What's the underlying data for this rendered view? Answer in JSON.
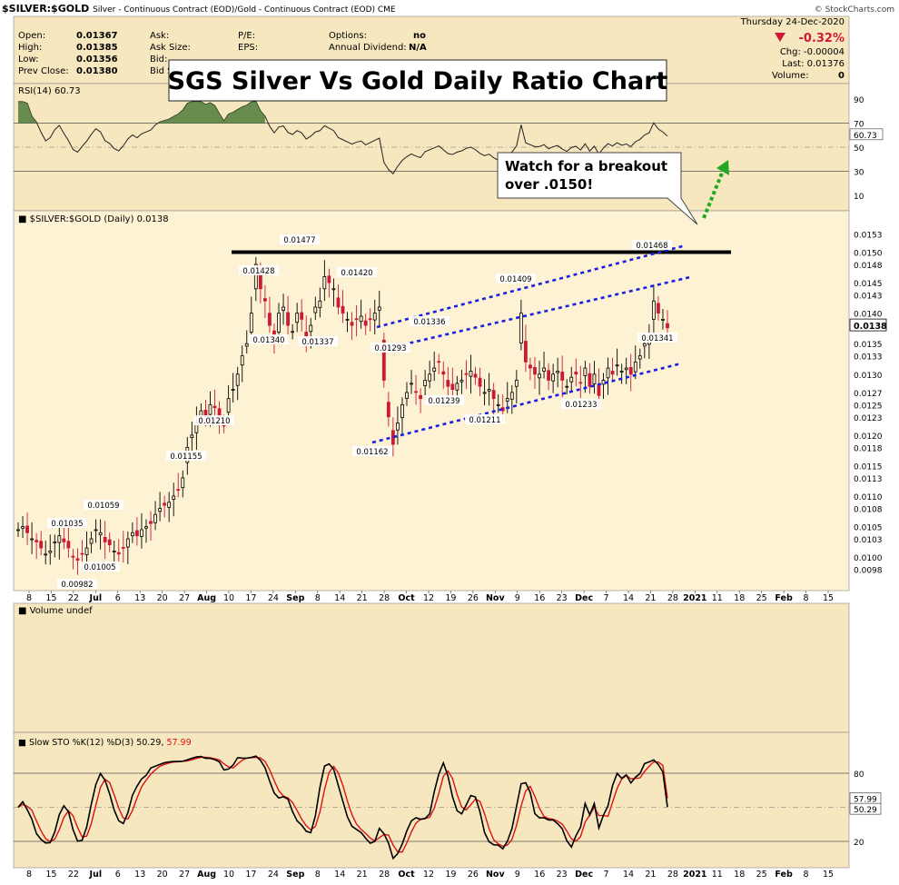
{
  "header": {
    "symbol": "$SILVER:$GOLD",
    "description": "Silver - Continuous Contract (EOD)/Gold - Continuous Contract (EOD)",
    "exchange": "CME",
    "watermark": "© StockCharts.com",
    "date": "Thursday  24-Dec-2020",
    "change_pct": "-0.32%",
    "chg": "Chg: -0.00004",
    "last": "Last: 0.01376",
    "volume": "Volume:",
    "volume_value": "0",
    "quote_labels": [
      {
        "label": "Open:",
        "value": "0.01367"
      },
      {
        "label": "High:",
        "value": "0.01385"
      },
      {
        "label": "Low:",
        "value": "0.01356"
      },
      {
        "label": "Prev Close:",
        "value": "0.01380"
      }
    ],
    "mid_labels": [
      "Ask:",
      "Ask Size:",
      "Bid:",
      "Bid Size:"
    ],
    "pe_labels": [
      "P/E:",
      "EPS:"
    ],
    "options_label": "Options:",
    "options_value": "no",
    "dividend_label": "Annual Dividend:",
    "dividend_value": "N/A"
  },
  "annotations": {
    "title": "SGS Silver Vs Gold Daily Ratio Chart",
    "callout_line1": "Watch for a breakout",
    "callout_line2": "over .0150!"
  },
  "rsi_panel": {
    "label": "RSI(14) 60.73",
    "ticks": [
      "90",
      "70",
      "50",
      "30",
      "10"
    ],
    "last_value": "60.73"
  },
  "volume_panel": {
    "label": "Volume undef"
  },
  "sto_panel": {
    "label_prefix": "Slow STO %K(12) %D(3)",
    "k_value": "50.29",
    "d_value": "57.99",
    "ticks": [
      "80",
      "20"
    ]
  },
  "x_axis_labels": [
    "8",
    "15",
    "22",
    "Jul",
    "6",
    "13",
    "20",
    "27",
    "Aug",
    "10",
    "17",
    "24",
    "Sep",
    "8",
    "14",
    "21",
    "28",
    "Oct",
    "12",
    "19",
    "26",
    "Nov",
    "9",
    "16",
    "23",
    "Dec",
    "7",
    "14",
    "21",
    "28",
    "2021",
    "11",
    "18",
    "25",
    "Feb",
    "8",
    "15"
  ],
  "colors": {
    "panel_bg": "#f7e7bf",
    "price_bg": "#fdf2d3",
    "up_candle": "#000000",
    "down_candle": "#cc1a36",
    "channel": "#1a22e0",
    "resistance": "#000000",
    "arrow": "#22a822",
    "stoch_k": "#000000",
    "stoch_d": "#dd1111"
  },
  "chart_data": {
    "type": "candlestick",
    "title": "SGS Silver Vs Gold Daily Ratio Chart",
    "ylabel": "$SILVER:$GOLD (Daily) 0.0138",
    "ylim": [
      0.0096,
      0.0155
    ],
    "y_ticks": [
      "0.0153",
      "0.0150",
      "0.0148",
      "0.0145",
      "0.0143",
      "0.0140",
      "0.0138",
      "0.0135",
      "0.0133",
      "0.0130",
      "0.0127",
      "0.0125",
      "0.0123",
      "0.0120",
      "0.0118",
      "0.0115",
      "0.0113",
      "0.0110",
      "0.0108",
      "0.0105",
      "0.0103",
      "0.0100",
      "0.0098"
    ],
    "last_price_label": "0.0138",
    "close_series": [
      0.01045,
      0.0105,
      0.0104,
      0.0103,
      0.01025,
      0.01015,
      0.01005,
      0.0101,
      0.01025,
      0.01035,
      0.01025,
      0.01015,
      0.01,
      0.00995,
      0.01005,
      0.01015,
      0.0103,
      0.01045,
      0.0104,
      0.01025,
      0.0102,
      0.0101,
      0.01005,
      0.01015,
      0.0103,
      0.0104,
      0.01035,
      0.01045,
      0.0105,
      0.01055,
      0.0107,
      0.0108,
      0.01085,
      0.0109,
      0.011,
      0.0111,
      0.0113,
      0.0118,
      0.012,
      0.0122,
      0.0124,
      0.0123,
      0.0125,
      0.01245,
      0.0123,
      0.01215,
      0.0126,
      0.01275,
      0.013,
      0.0133,
      0.0135,
      0.014,
      0.0148,
      0.0144,
      0.0142,
      0.0138,
      0.0135,
      0.014,
      0.0141,
      0.0138,
      0.0137,
      0.014,
      0.0139,
      0.0136,
      0.0138,
      0.0141,
      0.0142,
      0.0146,
      0.0145,
      0.0144,
      0.0141,
      0.014,
      0.0139,
      0.0138,
      0.0139,
      0.01395,
      0.0138,
      0.0139,
      0.014,
      0.0141,
      0.0129,
      0.0123,
      0.01185,
      0.0122,
      0.0125,
      0.0127,
      0.01285,
      0.0127,
      0.0126,
      0.0129,
      0.013,
      0.0131,
      0.0132,
      0.013,
      0.0128,
      0.01275,
      0.01285,
      0.0129,
      0.013,
      0.01305,
      0.01295,
      0.0128,
      0.0127,
      0.01275,
      0.0126,
      0.0125,
      0.0124,
      0.0126,
      0.0127,
      0.0129,
      0.014,
      0.0132,
      0.0131,
      0.013,
      0.013,
      0.0131,
      0.0129,
      0.013,
      0.01305,
      0.0129,
      0.0128,
      0.01295,
      0.013,
      0.01285,
      0.0131,
      0.0128,
      0.013,
      0.01265,
      0.0129,
      0.0131,
      0.013,
      0.01315,
      0.01305,
      0.0131,
      0.013,
      0.0132,
      0.0133,
      0.0135,
      0.0136,
      0.0142,
      0.014,
      0.0139,
      0.01376
    ],
    "annotations": [
      "0.01477",
      "0.01468",
      "0.01428",
      "0.01420",
      "0.01409",
      "0.01336",
      "0.01340",
      "0.01337",
      "0.01293",
      "0.01341",
      "0.01239",
      "0.01233",
      "0.01211",
      "0.01210",
      "0.01162",
      "0.01155",
      "0.01059",
      "0.01035",
      "0.01005",
      "0.00982"
    ],
    "resistance": 0.015
  }
}
